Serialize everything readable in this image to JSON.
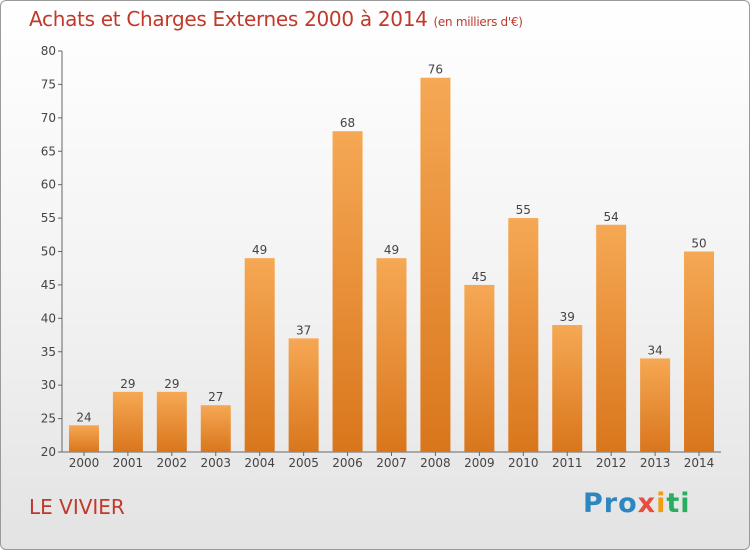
{
  "header": {
    "title": "Achats et Charges Externes 2000 à 2014",
    "subtitle": "(en milliers d'€)"
  },
  "footer": {
    "location": "LE VIVIER",
    "logo": [
      "Pro",
      "x",
      "i",
      "ti"
    ]
  },
  "colors": {
    "bar_light": "#f6a854",
    "bar_dark": "#d9761c",
    "text": "#c0392b"
  },
  "chart_data": {
    "type": "bar",
    "title": "Achats et Charges Externes 2000 à 2014",
    "subtitle": "(en milliers d'€)",
    "xlabel": "",
    "ylabel": "",
    "categories": [
      "2000",
      "2001",
      "2002",
      "2003",
      "2004",
      "2005",
      "2006",
      "2007",
      "2008",
      "2009",
      "2010",
      "2011",
      "2012",
      "2013",
      "2014"
    ],
    "values": [
      24,
      29,
      29,
      27,
      49,
      37,
      68,
      49,
      76,
      45,
      55,
      39,
      54,
      34,
      50
    ],
    "ylim": [
      20,
      80
    ],
    "yticks": [
      20,
      25,
      30,
      35,
      40,
      45,
      50,
      55,
      60,
      65,
      70,
      75,
      80
    ],
    "grid": false,
    "data_labels": true
  }
}
